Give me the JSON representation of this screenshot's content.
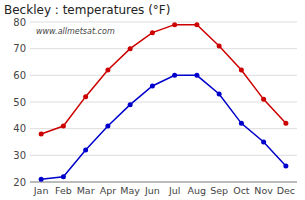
{
  "chart_data": {
    "type": "line",
    "title": "Beckley : temperatures (°F)",
    "categories": [
      "Jan",
      "Feb",
      "Mar",
      "Apr",
      "May",
      "Jun",
      "Jul",
      "Aug",
      "Sep",
      "Oct",
      "Nov",
      "Dec"
    ],
    "series": [
      {
        "color": "#cc0000",
        "marker": "circle",
        "line_style": "solid",
        "values": [
          38,
          41,
          52,
          62,
          70,
          76,
          79,
          79,
          71,
          62,
          51,
          42
        ]
      },
      {
        "color": "#0000cc",
        "marker": "circle",
        "line_style": "solid",
        "values": [
          21,
          22,
          32,
          41,
          49,
          56,
          60,
          60,
          53,
          42,
          35,
          26
        ]
      }
    ],
    "ylim": [
      20,
      80
    ],
    "yticks": [
      20,
      30,
      40,
      50,
      60,
      70,
      80
    ],
    "grid": true,
    "annotations": [
      "www.allmetsat.com"
    ]
  }
}
